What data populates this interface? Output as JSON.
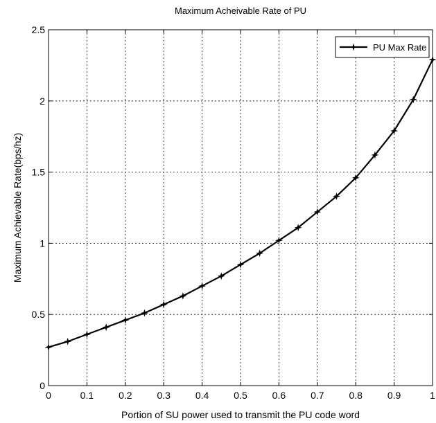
{
  "chart_data": {
    "type": "line",
    "title": "Maximum Acheivable Rate of PU",
    "xlabel": "Portion of SU power used to transmit the PU code word",
    "ylabel": "Maximum Achievable Rate(bps/hz)",
    "xlim": [
      0,
      1
    ],
    "ylim": [
      0,
      2.5
    ],
    "xticks": [
      0,
      0.1,
      0.2,
      0.3,
      0.4,
      0.5,
      0.6,
      0.7,
      0.8,
      0.9,
      1
    ],
    "xtick_labels": [
      "0",
      "0.1",
      "0.2",
      "0.3",
      "0.4",
      "0.5",
      "0.6",
      "0.7",
      "0.8",
      "0.9",
      "1"
    ],
    "yticks": [
      0,
      0.5,
      1,
      1.5,
      2,
      2.5
    ],
    "ytick_labels": [
      "0",
      "0.5",
      "1",
      "1.5",
      "2",
      "2.5"
    ],
    "grid": true,
    "legend_position": "top-right",
    "series": [
      {
        "name": "PU Max Rate",
        "color": "#000000",
        "marker": "star",
        "x": [
          0,
          0.05,
          0.1,
          0.15,
          0.2,
          0.25,
          0.3,
          0.35,
          0.4,
          0.45,
          0.5,
          0.55,
          0.6,
          0.65,
          0.7,
          0.75,
          0.8,
          0.85,
          0.9,
          0.95,
          1
        ],
        "y": [
          0.27,
          0.31,
          0.36,
          0.41,
          0.46,
          0.51,
          0.57,
          0.63,
          0.7,
          0.77,
          0.85,
          0.93,
          1.02,
          1.11,
          1.22,
          1.33,
          1.46,
          1.62,
          1.79,
          2.01,
          2.29
        ]
      }
    ]
  }
}
